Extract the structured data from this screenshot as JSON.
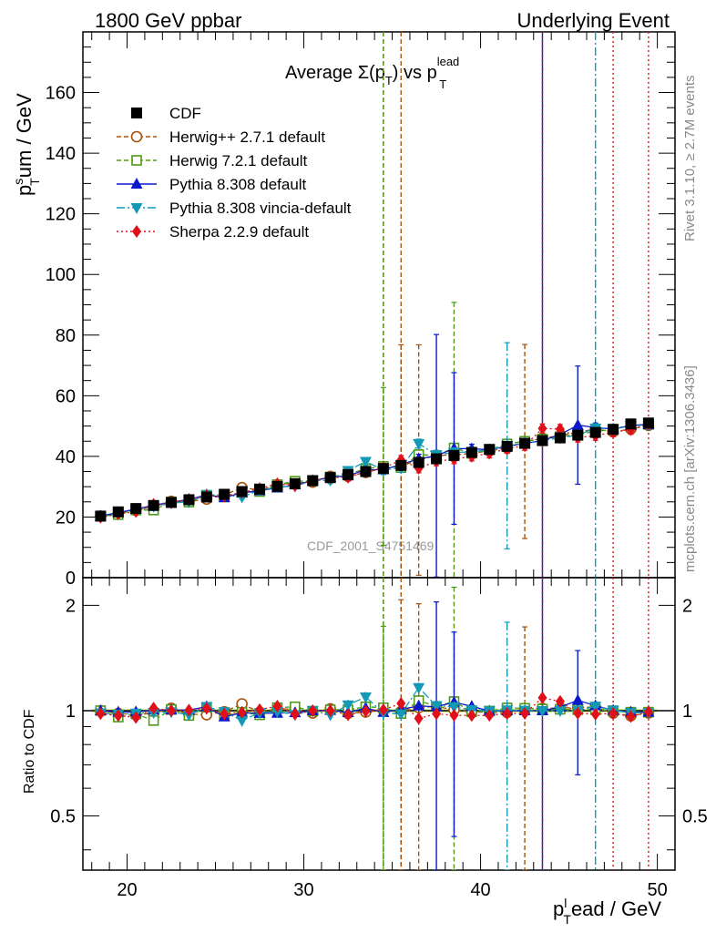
{
  "header": {
    "left": "1800 GeV ppbar",
    "right": "Underlying Event"
  },
  "side_labels": {
    "rivet": "Rivet 3.1.10, ≥ 2.7M events",
    "mcplots": "mcplots.cern.ch [arXiv:1306.3436]"
  },
  "watermark": "CDF_2001_S4751469",
  "plot_title": {
    "prefix": "Average Σ(p",
    "sub1": "T",
    "mid": ") vs p",
    "sub2": "T",
    "sup2": "lead"
  },
  "axes": {
    "ylabel": {
      "base": "p",
      "sup": "s",
      "sub": "T",
      "rest": "um / GeV"
    },
    "xlabel": {
      "base": "p",
      "sup": "l",
      "sub": "T",
      "rest": "ead / GeV"
    },
    "ratio_ylabel": "Ratio to CDF",
    "main_y_ticks": [
      "0",
      "20",
      "40",
      "60",
      "80",
      "100",
      "120",
      "140",
      "160"
    ],
    "ratio_y_ticks": [
      "0.5",
      "1",
      "2"
    ],
    "x_ticks": [
      "20",
      "30",
      "40",
      "50"
    ]
  },
  "chart_data": {
    "type": "scatter",
    "xlim": [
      17.5,
      51
    ],
    "ylim": [
      0,
      180
    ],
    "ratio_ylim": [
      0.35,
      2.4
    ],
    "ratio_scale": "log",
    "grid": false,
    "legend_position": "top-left",
    "x": [
      18.5,
      19.5,
      20.5,
      21.5,
      22.5,
      23.5,
      24.5,
      25.5,
      26.5,
      27.5,
      28.5,
      29.5,
      30.5,
      31.5,
      32.5,
      33.5,
      34.5,
      35.5,
      36.5,
      37.5,
      38.5,
      39.5,
      40.5,
      41.5,
      42.5,
      43.5,
      44.5,
      45.5,
      46.5,
      47.5,
      48.5,
      49.5
    ],
    "series": [
      {
        "name": "CDF",
        "color": "#000000",
        "marker": "square-filled",
        "values": [
          20.3,
          21.7,
          22.8,
          23.8,
          24.8,
          25.7,
          26.6,
          27.5,
          28.4,
          29.2,
          30.1,
          31.0,
          32.0,
          33.0,
          34.0,
          35.0,
          36.0,
          37.0,
          38.0,
          39.2,
          40.3,
          41.3,
          42.3,
          43.3,
          44.3,
          45.2,
          46.1,
          47.0,
          47.9,
          48.9,
          50.7,
          51.0
        ]
      },
      {
        "name": "Herwig++ 2.7.1 default",
        "color": "#a5520d",
        "marker": "circle-open",
        "values": [
          20.3,
          21.3,
          22.2,
          23.4,
          25.2,
          25.1,
          25.9,
          27.3,
          29.7,
          28.9,
          30.5,
          31.3,
          31.5,
          33.4,
          33.4,
          34.7,
          36.1,
          36.8,
          38.8,
          40.3,
          40.5,
          41.0,
          41.8,
          42.8,
          44.9,
          45.9,
          46.9,
          48.0,
          49.0,
          48.1,
          49.0,
          50.2
        ],
        "errors": [
          0.5,
          0.5,
          0.5,
          0.5,
          0.6,
          0.6,
          0.6,
          0.7,
          0.7,
          0.8,
          0.8,
          0.9,
          1.0,
          1.1,
          1.2,
          1.3,
          1.5,
          40,
          38,
          1.5,
          1.5,
          1.5,
          1.5,
          1.5,
          32,
          1.5,
          1.5,
          1.5,
          1.5,
          1.5,
          1.5,
          1.5
        ]
      },
      {
        "name": "Herwig 7.2.1 default",
        "color": "#4d9a18",
        "marker": "square-open",
        "values": [
          20.3,
          20.8,
          22.3,
          22.3,
          25.0,
          24.9,
          27.2,
          26.6,
          28.1,
          28.4,
          30.7,
          31.8,
          31.9,
          33.2,
          34.2,
          35.9,
          36.7,
          36.3,
          40.6,
          40.3,
          42.8,
          41.0,
          42.2,
          44.1,
          45.0,
          45.7,
          46.5,
          47.3,
          48.2,
          48.9,
          50.2,
          50.5
        ],
        "errors": [
          0.5,
          0.5,
          0.5,
          0.5,
          0.6,
          0.6,
          0.6,
          0.7,
          0.7,
          0.8,
          0.8,
          0.9,
          1.0,
          1.1,
          1.2,
          1.3,
          26,
          1.5,
          1.5,
          1.5,
          48,
          1.5,
          1.5,
          1.5,
          1.5,
          1.5,
          1.5,
          1.5,
          1.5,
          1.5,
          1.5,
          1.5
        ]
      },
      {
        "name": "Pythia 8.308 default",
        "color": "#0a19cc",
        "marker": "triangle-up-filled",
        "values": [
          20.3,
          21.5,
          22.6,
          23.9,
          24.9,
          25.8,
          27.3,
          26.4,
          28.0,
          28.7,
          29.6,
          30.6,
          32.0,
          33.1,
          33.6,
          35.6,
          35.6,
          37.3,
          39.2,
          40.2,
          42.6,
          42.5,
          42.2,
          43.3,
          44.3,
          45.2,
          47.2,
          50.3,
          49.5,
          49.0,
          50.2,
          50.5
        ],
        "errors": [
          0.5,
          0.5,
          0.5,
          0.5,
          0.6,
          0.6,
          0.6,
          0.7,
          0.7,
          0.8,
          0.8,
          0.9,
          1.0,
          1.1,
          1.2,
          1.3,
          1.5,
          1.5,
          1.5,
          40,
          25,
          1.5,
          1.5,
          1.5,
          1.5,
          1.5,
          1.5,
          19.5,
          1.5,
          1.5,
          1.5,
          1.5
        ]
      },
      {
        "name": "Pythia 8.308 vincia-default",
        "color": "#1399b5",
        "marker": "triangle-down-filled",
        "values": [
          20.0,
          21.2,
          22.4,
          23.5,
          24.6,
          25.0,
          27.3,
          27.3,
          26.6,
          28.8,
          29.9,
          30.2,
          32.0,
          32.1,
          35.3,
          38.3,
          35.5,
          36.2,
          44.2,
          40.5,
          41.3,
          41.5,
          42.2,
          43.5,
          44.4,
          45.2,
          46.1,
          47.0,
          49.3,
          49.0,
          50.0,
          50.3
        ],
        "errors": [
          0.5,
          0.5,
          0.5,
          0.5,
          0.6,
          0.6,
          0.6,
          0.7,
          0.7,
          0.8,
          0.8,
          0.9,
          1.0,
          1.1,
          1.2,
          1.3,
          1.5,
          1.5,
          1.5,
          1.5,
          1.5,
          1.5,
          1.5,
          34,
          1.5,
          1.5,
          1.5,
          1.5,
          1.5,
          1.5,
          1.5,
          1.5
        ]
      },
      {
        "name": "Sherpa 2.2.9 default",
        "color": "#e0101a",
        "marker": "diamond-filled",
        "values": [
          19.9,
          21.0,
          21.8,
          24.2,
          24.8,
          25.8,
          27.0,
          26.9,
          28.1,
          29.4,
          31.0,
          30.3,
          32.0,
          33.0,
          33.1,
          34.9,
          36.2,
          38.8,
          36.1,
          38.4,
          39.1,
          40.0,
          41.0,
          42.5,
          43.5,
          49.2,
          49.0,
          46.2,
          46.8,
          48.0,
          48.8,
          50.6
        ],
        "errors": [
          0.5,
          0.5,
          0.5,
          0.5,
          0.6,
          0.6,
          0.6,
          0.7,
          0.7,
          0.8,
          0.8,
          0.9,
          1.0,
          1.1,
          1.2,
          1.3,
          1.5,
          1.5,
          1.5,
          1.5,
          1.5,
          1.5,
          1.5,
          1.5,
          1.5,
          1.5,
          1.5,
          1.5,
          1.5,
          1.5,
          1.5,
          1.5
        ]
      }
    ],
    "full_height_error_lines": [
      {
        "series": "Herwig++ 2.7.1 default",
        "x": 34.5
      },
      {
        "series": "Herwig++ 2.7.1 default",
        "x": 35.5
      },
      {
        "series": "Herwig 7.2.1 default",
        "x": 34.5
      },
      {
        "series": "Pythia 8.308 default",
        "x": 43.5
      },
      {
        "series": "Pythia 8.308 vincia-default",
        "x": 46.5
      },
      {
        "series": "Sherpa 2.2.9 default",
        "x": 43.5
      },
      {
        "series": "Sherpa 2.2.9 default",
        "x": 47.5
      },
      {
        "series": "Sherpa 2.2.9 default",
        "x": 49.5
      }
    ]
  }
}
